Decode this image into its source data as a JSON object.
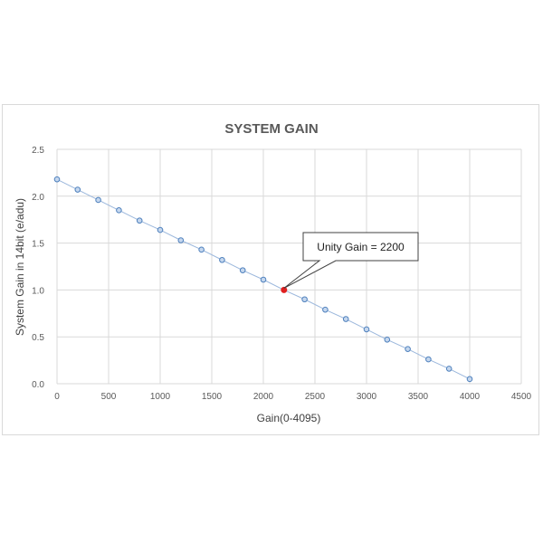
{
  "chart_data": {
    "type": "scatter",
    "title": "SYSTEM GAIN",
    "xlabel": "Gain(0-4095)",
    "ylabel": "System Gain in 14bit (e/adu)",
    "xlim": [
      0,
      4500
    ],
    "ylim": [
      0,
      2.5
    ],
    "x_ticks": [
      0,
      500,
      1000,
      1500,
      2000,
      2500,
      3000,
      3500,
      4000,
      4500
    ],
    "x_tick_labels": [
      "0",
      "500",
      "1000",
      "1500",
      "2000",
      "2500",
      "3000",
      "3500",
      "4000",
      "4500"
    ],
    "y_ticks": [
      0,
      0.5,
      1,
      1.5,
      2,
      2.5
    ],
    "y_tick_labels": [
      "0.0",
      "0.5",
      "1.0",
      "1.5",
      "2.0",
      "2.5"
    ],
    "grid": true,
    "series": [
      {
        "x": [
          0,
          200,
          400,
          600,
          800,
          1000,
          1200,
          1400,
          1600,
          1800,
          2000,
          2200,
          2400,
          2600,
          2800,
          3000,
          3200,
          3400,
          3600,
          3800,
          4000
        ],
        "y": [
          2.18,
          2.07,
          1.96,
          1.85,
          1.74,
          1.64,
          1.53,
          1.43,
          1.32,
          1.21,
          1.11,
          1.0,
          0.9,
          0.79,
          0.69,
          0.58,
          0.47,
          0.37,
          0.26,
          0.16,
          0.05
        ]
      }
    ],
    "highlight": {
      "x": 2200,
      "y": 1.0,
      "color": "#e02020"
    },
    "annotations": [
      {
        "text": "Unity Gain = 2200",
        "x": 2200,
        "y": 1.0
      }
    ],
    "colors": {
      "marker_fill": "#c5d7ee",
      "marker_stroke": "#4f81bd",
      "line": "#9bb7dc",
      "grid": "#d9d9d9"
    }
  }
}
